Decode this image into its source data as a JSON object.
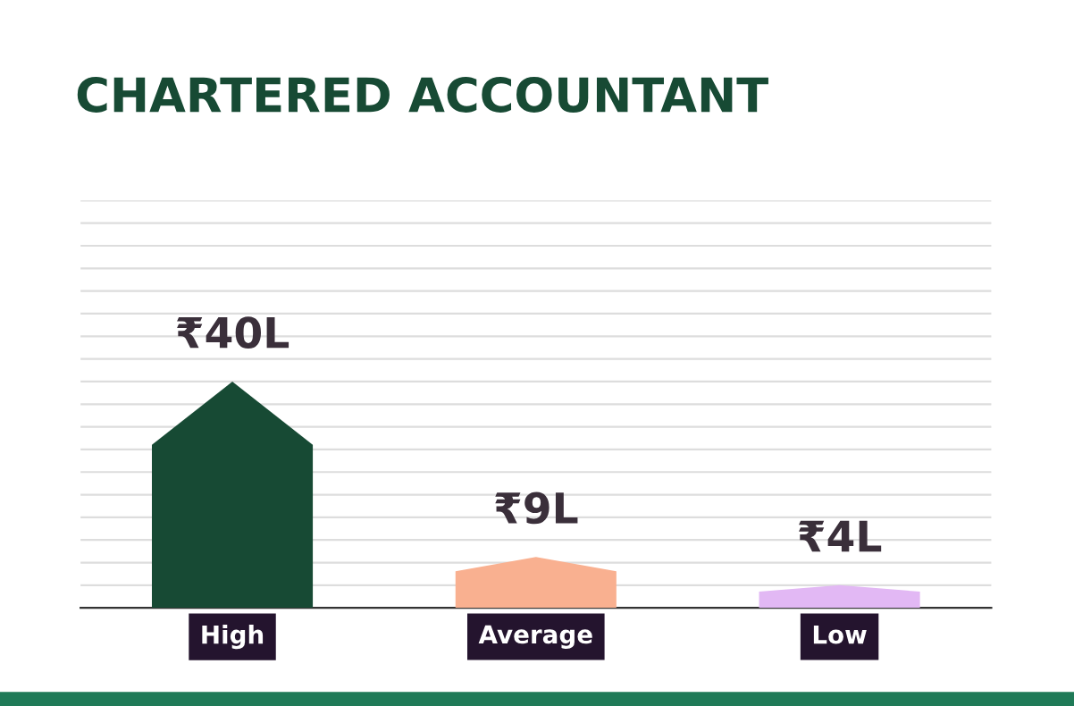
{
  "chart_data": {
    "type": "bar",
    "title": "CHARTERED ACCOUNTANT",
    "categories": [
      "High",
      "Average",
      "Low"
    ],
    "values": [
      40,
      9,
      4
    ],
    "value_labels": [
      "₹40L",
      "₹9L",
      "₹4L"
    ],
    "colors": [
      "#174a34",
      "#f9b090",
      "#e2b8f4"
    ],
    "ylim": [
      0,
      72
    ],
    "yticks": [
      {
        "value": 0,
        "label": null
      },
      {
        "value": 4,
        "label": null
      },
      {
        "value": 8,
        "label": null
      },
      {
        "value": 12,
        "label": null
      },
      {
        "value": 16,
        "label": null
      },
      {
        "value": 20,
        "label": null
      },
      {
        "value": 24,
        "label": null
      },
      {
        "value": 28,
        "label": null
      },
      {
        "value": 32,
        "label": null
      },
      {
        "value": 36,
        "label": null
      },
      {
        "value": 40,
        "label": null
      },
      {
        "value": 44,
        "label": null
      },
      {
        "value": 48,
        "label": null
      },
      {
        "value": 52,
        "label": null
      },
      {
        "value": 56,
        "label": null
      },
      {
        "value": 60,
        "label": null
      },
      {
        "value": 64,
        "label": null
      },
      {
        "value": 68,
        "label": null
      },
      {
        "value": 72,
        "label": null
      }
    ],
    "grid": "y",
    "tick_labels": "x"
  }
}
